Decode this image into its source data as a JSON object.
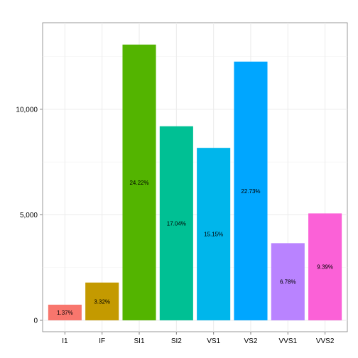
{
  "chart_data": {
    "type": "bar",
    "categories": [
      "I1",
      "IF",
      "SI1",
      "SI2",
      "VS1",
      "VS2",
      "VVS1",
      "VVS2"
    ],
    "values": [
      741,
      1790,
      13065,
      9194,
      8171,
      12258,
      3655,
      5066
    ],
    "data_labels": [
      "1.37%",
      "3.32%",
      "24.22%",
      "17.04%",
      "15.15%",
      "22.73%",
      "6.78%",
      "9.39%"
    ],
    "colors": [
      "#F8766D",
      "#C49A00",
      "#53B400",
      "#00C094",
      "#00B6EB",
      "#00A6FF",
      "#B983FF",
      "#FB61D7"
    ],
    "y_ticks": [
      0,
      5000,
      10000
    ],
    "y_tick_labels": [
      "0",
      "5,000",
      "10,000"
    ],
    "ylim": [
      -540,
      14100
    ],
    "grid": true,
    "legend": "none",
    "title": "",
    "xlabel": "",
    "ylabel": ""
  }
}
